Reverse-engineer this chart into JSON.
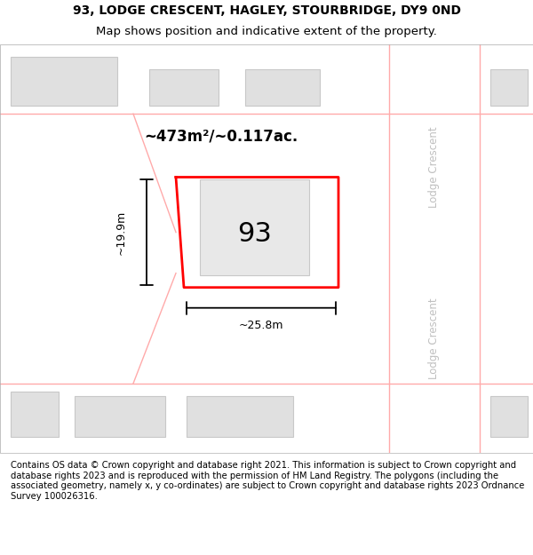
{
  "title_line1": "93, LODGE CRESCENT, HAGLEY, STOURBRIDGE, DY9 0ND",
  "title_line2": "Map shows position and indicative extent of the property.",
  "footer_text": "Contains OS data © Crown copyright and database right 2021. This information is subject to Crown copyright and database rights 2023 and is reproduced with the permission of HM Land Registry. The polygons (including the associated geometry, namely x, y co-ordinates) are subject to Crown copyright and database rights 2023 Ordnance Survey 100026316.",
  "area_label": "~473m²/~0.117ac.",
  "number_label": "93",
  "dim_width_label": "~25.8m",
  "dim_height_label": "~19.9m",
  "street_label_top": "Lodge Crescent",
  "street_label_bottom": "Lodge Crescent",
  "background_color": "#ffffff",
  "map_bg_color": "#f5f5f5",
  "building_fill": "#e0e0e0",
  "building_edge": "#c8c8c8",
  "plot_outline_color": "#ff0000",
  "street_line_color": "#ffaaaa",
  "dim_line_color": "#000000",
  "title_fontsize": 10,
  "footer_fontsize": 7.2
}
